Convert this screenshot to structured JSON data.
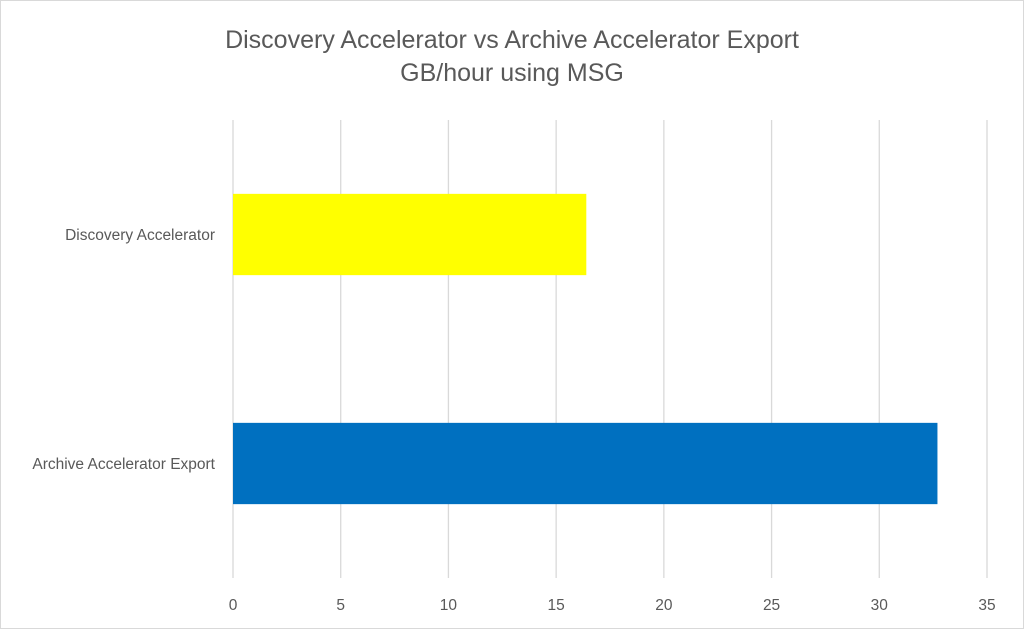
{
  "chart_data": {
    "type": "bar",
    "orientation": "horizontal",
    "title": "Discovery Accelerator vs Archive Accelerator Export",
    "subtitle": "GB/hour using MSG",
    "xlabel": "",
    "ylabel": "",
    "categories": [
      "Discovery Accelerator",
      "Archive Accelerator Export"
    ],
    "values": [
      16.4,
      32.7
    ],
    "colors": [
      "#ffff00",
      "#0070c0"
    ],
    "xlim": [
      0,
      35
    ],
    "xticks": [
      0,
      5,
      10,
      15,
      20,
      25,
      30,
      35
    ],
    "grid": true,
    "legend": "none"
  }
}
